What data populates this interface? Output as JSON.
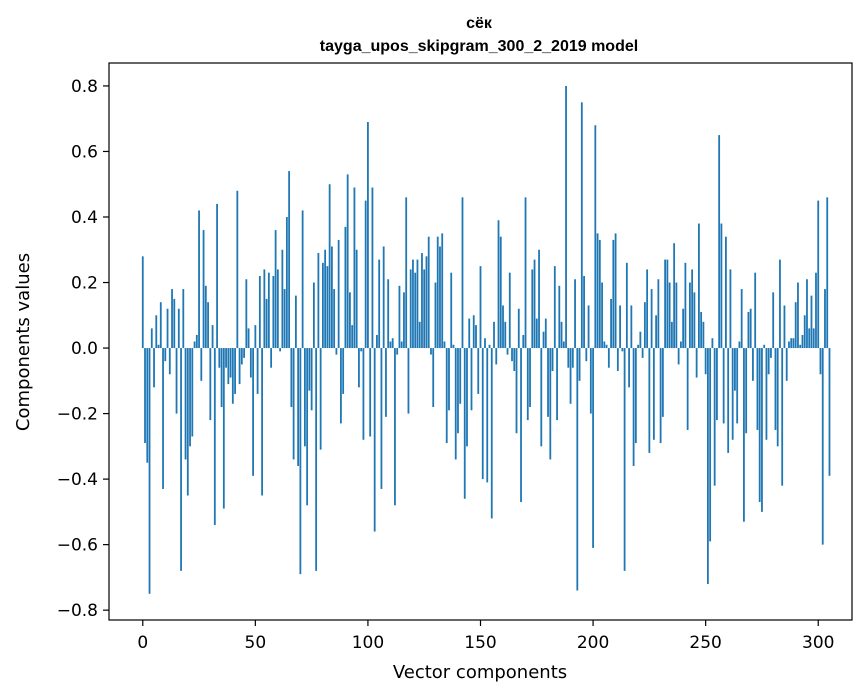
{
  "chart_data": {
    "type": "bar",
    "title_line1": "сёк",
    "title_line2": "tayga_upos_skipgram_300_2_2019 model",
    "xlabel": "Vector components",
    "ylabel": "Components values",
    "xlim": [
      -15,
      315
    ],
    "ylim": [
      -0.83,
      0.87
    ],
    "xticks": [
      0,
      50,
      100,
      150,
      200,
      250,
      300
    ],
    "xtick_labels": [
      "0",
      "50",
      "100",
      "150",
      "200",
      "250",
      "300"
    ],
    "yticks": [
      -0.8,
      -0.6,
      -0.4,
      -0.2,
      0.0,
      0.2,
      0.4,
      0.6,
      0.8
    ],
    "ytick_labels": [
      "−0.8",
      "−0.6",
      "−0.4",
      "−0.2",
      "0.0",
      "0.2",
      "0.4",
      "0.6",
      "0.8"
    ],
    "bar_color": "#1f77b4",
    "grid": false,
    "values": [
      0.28,
      -0.29,
      -0.35,
      -0.75,
      0.06,
      -0.12,
      0.1,
      0.01,
      0.14,
      -0.43,
      -0.04,
      0.12,
      -0.08,
      0.18,
      0.15,
      -0.2,
      0.12,
      -0.68,
      0.18,
      -0.34,
      -0.45,
      -0.3,
      -0.27,
      0.02,
      0.04,
      0.42,
      -0.1,
      0.36,
      0.19,
      0.14,
      -0.22,
      0.07,
      -0.54,
      0.44,
      -0.06,
      -0.18,
      -0.49,
      -0.06,
      -0.11,
      -0.09,
      -0.17,
      -0.14,
      0.48,
      -0.11,
      -0.05,
      -0.03,
      0.21,
      0.06,
      -0.09,
      -0.39,
      0.07,
      -0.14,
      0.22,
      -0.45,
      0.24,
      0.15,
      0.23,
      -0.06,
      0.22,
      0.36,
      0.24,
      -0.01,
      0.3,
      0.18,
      0.4,
      0.54,
      -0.18,
      -0.34,
      0.16,
      -0.36,
      -0.69,
      0.42,
      -0.3,
      -0.48,
      -0.13,
      -0.19,
      0.2,
      -0.68,
      0.29,
      -0.31,
      0.26,
      0.3,
      0.25,
      0.5,
      0.31,
      0.18,
      -0.02,
      0.33,
      -0.23,
      -0.14,
      0.37,
      0.53,
      0.17,
      0.07,
      0.49,
      0.3,
      -0.12,
      -0.01,
      -0.28,
      0.45,
      0.69,
      -0.27,
      0.49,
      -0.56,
      0.04,
      0.27,
      -0.43,
      0.31,
      -0.21,
      0.21,
      0.02,
      0.03,
      -0.48,
      -0.02,
      0.19,
      0.02,
      0.17,
      0.46,
      -0.2,
      0.24,
      0.27,
      0.23,
      0.27,
      0.08,
      0.29,
      0.24,
      0.28,
      0.34,
      -0.02,
      -0.18,
      0.2,
      0.34,
      0.31,
      0.35,
      0.02,
      -0.29,
      -0.19,
      0.23,
      0.01,
      -0.34,
      -0.26,
      -0.17,
      0.46,
      -0.46,
      -0.3,
      0.09,
      -0.19,
      0.1,
      0.07,
      -0.14,
      0.25,
      -0.4,
      0.03,
      -0.41,
      0.01,
      -0.52,
      0.08,
      -0.05,
      0.39,
      0.34,
      0.13,
      0.08,
      -0.02,
      0.23,
      -0.04,
      -0.07,
      -0.26,
      0.12,
      -0.47,
      0.04,
      0.46,
      -0.22,
      -0.18,
      0.24,
      0.27,
      0.09,
      0.3,
      -0.3,
      0.05,
      0.09,
      -0.21,
      -0.34,
      -0.07,
      0.25,
      -0.22,
      0.19,
      0.08,
      0.02,
      0.8,
      -0.06,
      -0.17,
      -0.06,
      0.21,
      -0.74,
      -0.1,
      0.75,
      0.22,
      -0.04,
      0.13,
      -0.2,
      -0.61,
      0.68,
      0.35,
      0.33,
      0.2,
      0.02,
      0.01,
      -0.06,
      0.15,
      0.33,
      0.35,
      -0.07,
      0.13,
      -0.01,
      -0.68,
      0.26,
      -0.12,
      0.13,
      -0.36,
      -0.29,
      0.01,
      0.05,
      -0.03,
      0.14,
      0.24,
      -0.32,
      0.18,
      -0.28,
      0.1,
      0.21,
      -0.29,
      -0.21,
      0.27,
      0.27,
      0.2,
      0.08,
      0.32,
      0.2,
      -0.05,
      0.02,
      0.12,
      0.26,
      -0.25,
      0.2,
      0.24,
      0.17,
      -0.09,
      0.38,
      0.11,
      0.08,
      -0.08,
      -0.72,
      -0.59,
      0.03,
      -0.42,
      -0.22,
      0.65,
      0.38,
      -0.23,
      0.34,
      -0.32,
      0.24,
      -0.28,
      -0.13,
      -0.23,
      0.02,
      0.18,
      -0.53,
      -0.26,
      0.11,
      0.12,
      -0.1,
      0.23,
      -0.25,
      -0.47,
      -0.5,
      0.01,
      -0.28,
      -0.08,
      -0.03,
      0.17,
      -0.25,
      -0.3,
      0.27,
      -0.42,
      0.13,
      -0.1,
      0.02,
      0.03,
      0.03,
      0.14,
      0.2,
      0.01,
      0.04,
      0.1,
      0.21,
      0.06,
      0.16,
      0.06,
      0.23,
      0.45,
      -0.08,
      -0.6,
      0.18,
      0.46,
      -0.39
    ]
  }
}
